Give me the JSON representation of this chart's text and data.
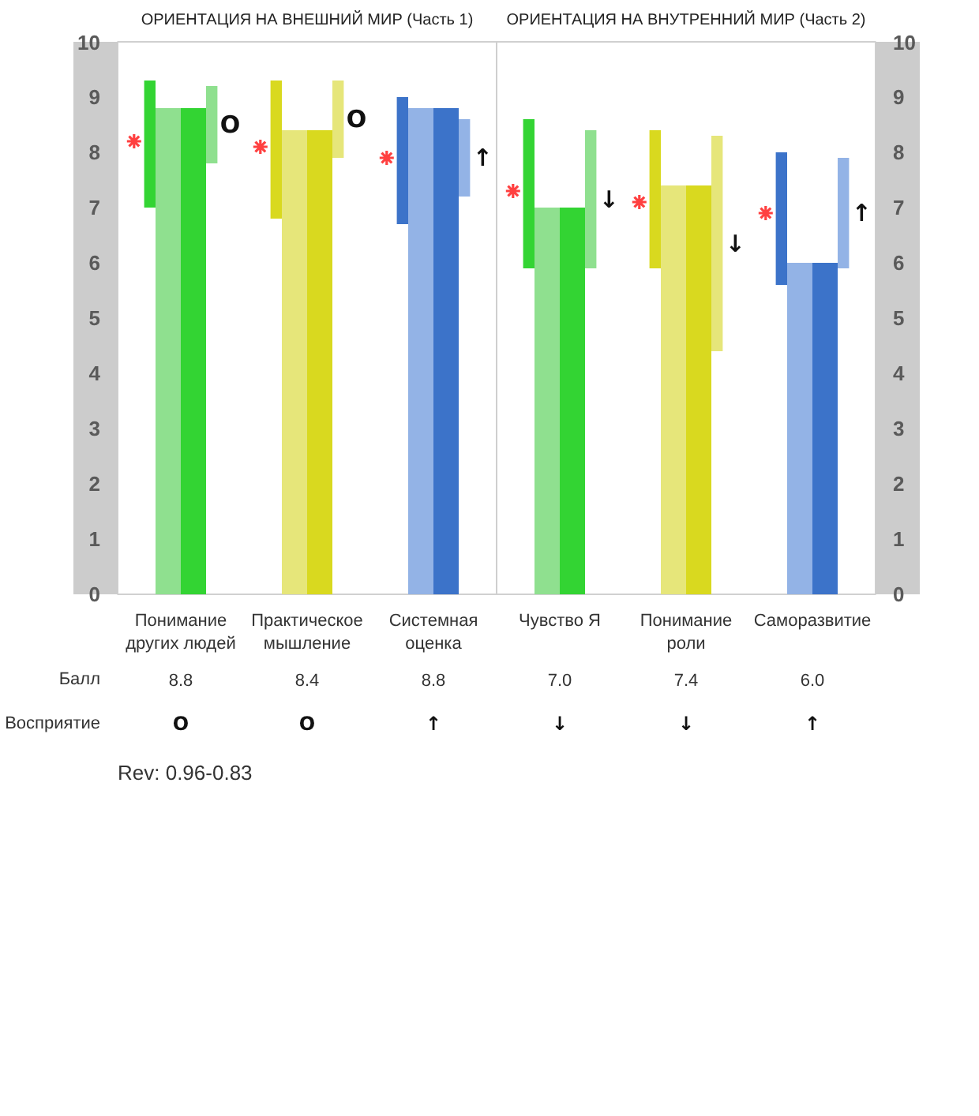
{
  "chart_data": {
    "type": "bar",
    "title": "ОРИЕНТАЦИЯ НА ВНЕШНИЙ МИР (Часть 1)",
    "subtitle": "ОРИЕНТАЦИЯ НА ВНУТРЕННИЙ МИР (Часть 2)",
    "categories": [
      "Понимание других людей",
      "Практическое мышление",
      "Системная оценка",
      "Чувство Я",
      "Понимание роли",
      "Саморазвитие"
    ],
    "series": [
      {
        "colors": [
          "#33d433",
          "#d9d91f",
          "#3c73c9",
          "#33d433",
          "#d9d91f",
          "#3c73c9"
        ],
        "base": [
          7.0,
          6.8,
          6.7,
          5.9,
          5.9,
          5.6
        ],
        "values": [
          2.3,
          2.5,
          2.3,
          2.7,
          2.5,
          2.4
        ]
      },
      {
        "colors": [
          "#8fe08f",
          "#e6e67a",
          "#93b3e6",
          "#8fe08f",
          "#e6e67a",
          "#93b3e6"
        ],
        "values": [
          8.8,
          8.4,
          8.8,
          7.0,
          7.4,
          6.0
        ]
      },
      {
        "colors": [
          "#33d433",
          "#d9d91f",
          "#3c73c9",
          "#33d433",
          "#d9d91f",
          "#3c73c9"
        ],
        "values": [
          8.8,
          8.4,
          8.8,
          7.0,
          7.4,
          6.0
        ],
        "value_labels": [
          "8.8",
          "8.4",
          "8.8",
          "7.0",
          "7.4",
          "6.0"
        ]
      },
      {
        "colors": [
          "#8fe08f",
          "#e6e67a",
          "#93b3e6",
          "#8fe08f",
          "#e6e67a",
          "#93b3e6"
        ],
        "base": [
          7.8,
          7.9,
          7.2,
          5.9,
          4.4,
          5.9
        ],
        "values": [
          1.4,
          1.4,
          1.4,
          2.5,
          3.9,
          2.0
        ],
        "value_labels": [
          "O",
          "O",
          "↑",
          "↓",
          "↓",
          "↑"
        ]
      },
      {
        "type": "scatter",
        "color": "#ff4040",
        "marker": "cross",
        "x": [
          "Понимание других людей",
          "Практическое мышление",
          "Системная оценка",
          "Чувство Я",
          "Понимание роли",
          "Саморазвитие"
        ],
        "values": [
          8.2,
          8.1,
          7.9,
          7.3,
          7.1,
          6.9
        ]
      }
    ],
    "annotations": [
      "Балл",
      "Восприятие",
      "O",
      "O",
      "↑",
      "↓",
      "↓",
      "↑",
      "Rev: 0.96-0.83"
    ],
    "ylim": [
      0,
      10
    ],
    "yticks": [
      0,
      1,
      2,
      3,
      4,
      5,
      6,
      7,
      8,
      9,
      10
    ],
    "y2lim": [
      0,
      10
    ],
    "y2ticks": [
      0,
      1,
      2,
      3,
      4,
      5,
      6,
      7,
      8,
      9,
      10
    ]
  }
}
